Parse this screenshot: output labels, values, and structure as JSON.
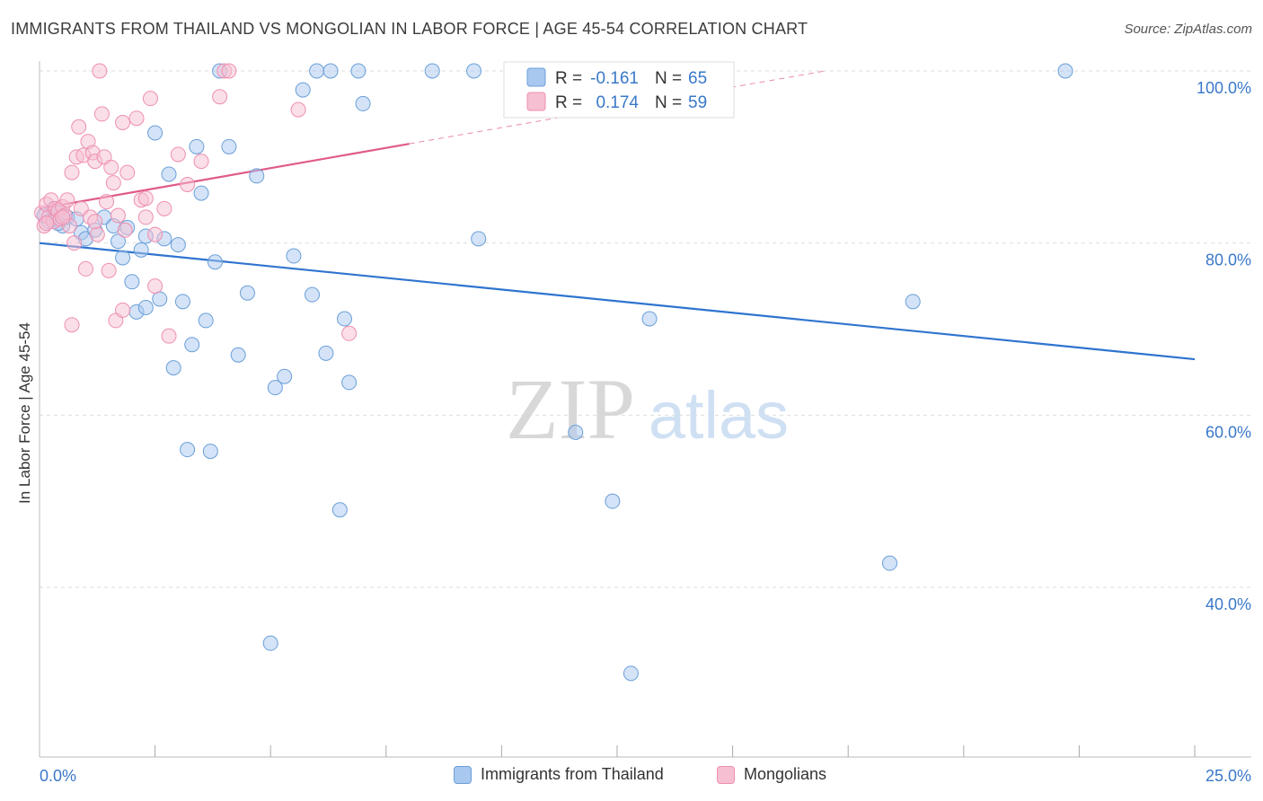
{
  "header": {
    "title": "IMMIGRANTS FROM THAILAND VS MONGOLIAN IN LABOR FORCE | AGE 45-54 CORRELATION CHART",
    "source": "Source: ZipAtlas.com"
  },
  "watermark": {
    "zip": "ZIP",
    "atlas": "atlas"
  },
  "colors": {
    "blue_fill": "#a9c8ef",
    "blue_stroke": "#6a9fd8",
    "blue_line": "#2f74cf",
    "pink_fill": "#f6bfd2",
    "pink_stroke": "#ee8fb0",
    "pink_line": "#e05a8a",
    "value_text": "#3a78c9",
    "grid": "#dddddd"
  },
  "chart_data": {
    "type": "scatter",
    "title": "IMMIGRANTS FROM THAILAND VS MONGOLIAN IN LABOR FORCE | AGE 45-54 CORRELATION CHART",
    "xlabel": "",
    "ylabel": "In Labor Force | Age 45-54",
    "xlim": [
      0,
      25
    ],
    "ylim": [
      20,
      102
    ],
    "x_tick_labels": [
      "0.0%",
      "25.0%"
    ],
    "y_ticks": [
      40,
      60,
      80,
      100
    ],
    "y_tick_labels": [
      "40.0%",
      "60.0%",
      "80.0%",
      "100.0%"
    ],
    "legend_stats": [
      {
        "r_label": "R =",
        "r_value": "-0.161",
        "n_label": "N =",
        "n_value": "65"
      },
      {
        "r_label": "R =",
        "r_value": "0.174",
        "n_label": "N =",
        "n_value": "59"
      }
    ],
    "series": [
      {
        "name": "Immigrants from Thailand",
        "color": "blue",
        "trend": {
          "x0": 0,
          "y0": 80.0,
          "x1": 25,
          "y1": 66.5,
          "solid_until": 25
        },
        "points": [
          [
            0.1,
            83.2
          ],
          [
            0.2,
            82.5
          ],
          [
            0.3,
            84.0
          ],
          [
            0.4,
            83.5
          ],
          [
            0.5,
            82.0
          ],
          [
            0.6,
            83.0
          ],
          [
            0.8,
            82.8
          ],
          [
            0.9,
            81.2
          ],
          [
            1.0,
            80.5
          ],
          [
            1.4,
            83.0
          ],
          [
            1.6,
            82.0
          ],
          [
            1.7,
            80.2
          ],
          [
            1.8,
            78.3
          ],
          [
            1.9,
            81.8
          ],
          [
            2.0,
            75.5
          ],
          [
            2.1,
            72.0
          ],
          [
            2.2,
            79.2
          ],
          [
            2.3,
            72.5
          ],
          [
            2.3,
            80.8
          ],
          [
            2.5,
            92.8
          ],
          [
            2.6,
            73.5
          ],
          [
            2.7,
            80.5
          ],
          [
            2.8,
            88.0
          ],
          [
            2.9,
            65.5
          ],
          [
            3.0,
            79.8
          ],
          [
            3.1,
            73.2
          ],
          [
            3.2,
            56.0
          ],
          [
            3.3,
            68.2
          ],
          [
            3.4,
            91.2
          ],
          [
            3.5,
            85.8
          ],
          [
            3.6,
            71.0
          ],
          [
            3.7,
            55.8
          ],
          [
            3.8,
            77.8
          ],
          [
            3.9,
            100.0
          ],
          [
            4.1,
            91.2
          ],
          [
            4.3,
            67.0
          ],
          [
            4.5,
            74.2
          ],
          [
            4.7,
            87.8
          ],
          [
            5.0,
            33.5
          ],
          [
            5.1,
            63.2
          ],
          [
            5.3,
            64.5
          ],
          [
            5.5,
            78.5
          ],
          [
            5.7,
            97.8
          ],
          [
            5.9,
            74.0
          ],
          [
            6.0,
            100.0
          ],
          [
            6.2,
            67.2
          ],
          [
            6.3,
            100.0
          ],
          [
            6.5,
            49.0
          ],
          [
            6.6,
            71.2
          ],
          [
            6.7,
            63.8
          ],
          [
            6.9,
            100.0
          ],
          [
            7.0,
            96.2
          ],
          [
            8.5,
            100.0
          ],
          [
            9.4,
            100.0
          ],
          [
            9.5,
            80.5
          ],
          [
            11.3,
            100.0
          ],
          [
            11.6,
            58.0
          ],
          [
            12.4,
            50.0
          ],
          [
            12.8,
            30.0
          ],
          [
            13.2,
            71.2
          ],
          [
            18.4,
            42.8
          ],
          [
            18.9,
            73.2
          ],
          [
            22.2,
            100.0
          ],
          [
            0.4,
            82.3
          ],
          [
            1.2,
            81.5
          ]
        ]
      },
      {
        "name": "Mongolians",
        "color": "pink",
        "trend": {
          "x0": 0,
          "y0": 84.0,
          "x1": 17,
          "y1": 100.0,
          "solid_until": 8.0
        },
        "points": [
          [
            0.05,
            83.5
          ],
          [
            0.1,
            82.0
          ],
          [
            0.15,
            84.5
          ],
          [
            0.2,
            83.0
          ],
          [
            0.25,
            85.0
          ],
          [
            0.3,
            82.5
          ],
          [
            0.35,
            84.0
          ],
          [
            0.4,
            83.8
          ],
          [
            0.45,
            82.8
          ],
          [
            0.5,
            84.2
          ],
          [
            0.55,
            83.2
          ],
          [
            0.6,
            85.0
          ],
          [
            0.65,
            82.0
          ],
          [
            0.7,
            88.2
          ],
          [
            0.7,
            70.5
          ],
          [
            0.75,
            80.0
          ],
          [
            0.8,
            90.0
          ],
          [
            0.85,
            93.5
          ],
          [
            0.9,
            84.0
          ],
          [
            0.95,
            90.2
          ],
          [
            1.0,
            77.0
          ],
          [
            1.05,
            91.8
          ],
          [
            1.1,
            83.0
          ],
          [
            1.15,
            90.5
          ],
          [
            1.2,
            89.5
          ],
          [
            1.25,
            81.0
          ],
          [
            1.3,
            100.0
          ],
          [
            1.35,
            95.0
          ],
          [
            1.4,
            90.0
          ],
          [
            1.45,
            84.8
          ],
          [
            1.5,
            76.8
          ],
          [
            1.55,
            88.8
          ],
          [
            1.6,
            87.0
          ],
          [
            1.65,
            71.0
          ],
          [
            1.7,
            83.2
          ],
          [
            1.8,
            72.2
          ],
          [
            1.8,
            94.0
          ],
          [
            1.85,
            81.5
          ],
          [
            1.9,
            88.2
          ],
          [
            2.1,
            94.5
          ],
          [
            2.2,
            85.0
          ],
          [
            2.3,
            83.0
          ],
          [
            2.3,
            85.2
          ],
          [
            2.4,
            96.8
          ],
          [
            2.5,
            81.0
          ],
          [
            2.5,
            75.0
          ],
          [
            2.7,
            84.0
          ],
          [
            2.8,
            69.2
          ],
          [
            3.0,
            90.3
          ],
          [
            3.2,
            86.8
          ],
          [
            3.5,
            89.5
          ],
          [
            3.9,
            97.0
          ],
          [
            4.0,
            100.0
          ],
          [
            4.1,
            100.0
          ],
          [
            5.6,
            95.5
          ],
          [
            6.7,
            69.5
          ],
          [
            0.15,
            82.3
          ],
          [
            0.5,
            83.0
          ],
          [
            1.2,
            82.5
          ]
        ]
      }
    ]
  },
  "legend_bottom": {
    "items": [
      {
        "label": "Immigrants from Thailand"
      },
      {
        "label": "Mongolians"
      }
    ]
  }
}
